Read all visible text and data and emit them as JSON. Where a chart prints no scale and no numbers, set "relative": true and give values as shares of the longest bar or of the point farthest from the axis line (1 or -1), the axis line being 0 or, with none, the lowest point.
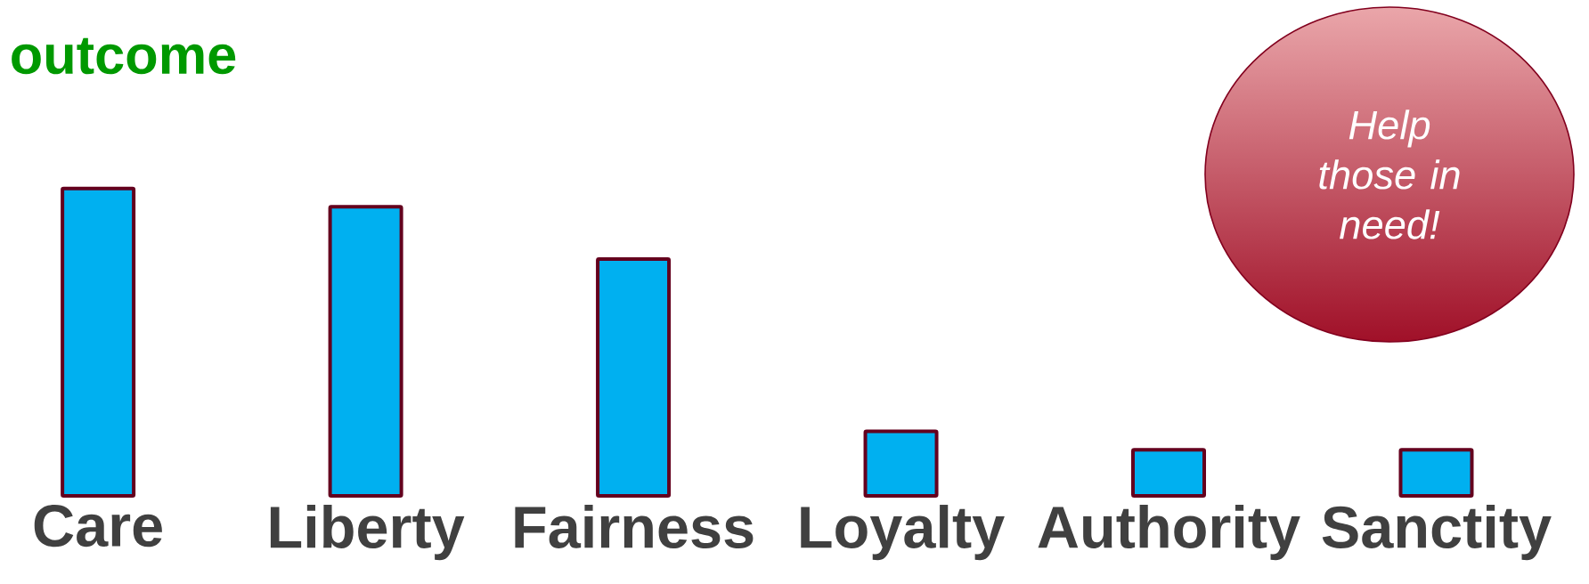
{
  "chart_data": {
    "type": "bar",
    "title": "outcome",
    "relative": true,
    "categories": [
      "Care",
      "Liberty",
      "Fairness",
      "Loyalty",
      "Authority",
      "Sanctity"
    ],
    "values": [
      1,
      0.94,
      0.77,
      0.21,
      0.15,
      0.15
    ],
    "color": "#00b0f0",
    "annotations": [
      "Help those in need!"
    ]
  }
}
